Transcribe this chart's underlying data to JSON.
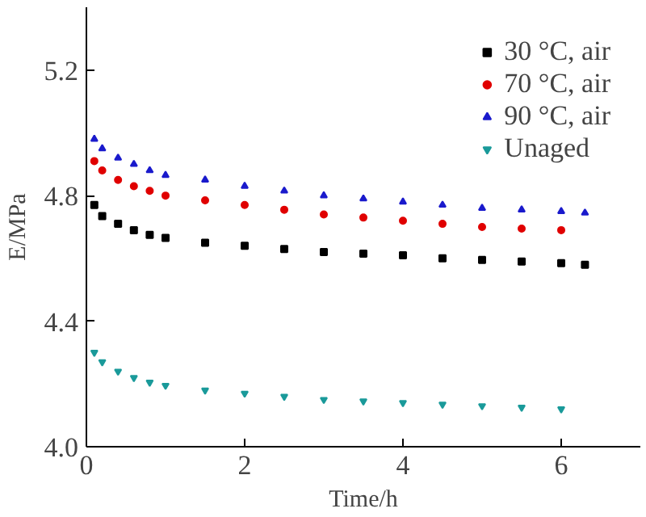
{
  "chart_data": {
    "type": "scatter",
    "xlabel": "Time/h",
    "ylabel": "E/MPa",
    "xlim": [
      0,
      7
    ],
    "ylim": [
      4.0,
      5.4
    ],
    "xticks": [
      0,
      2,
      4,
      6
    ],
    "yticks": [
      {
        "value": 4.0,
        "label": "4.0"
      },
      4.4,
      4.8,
      5.2
    ],
    "legend": "top right",
    "grid": false,
    "series": [
      {
        "name": "30 °C, air",
        "color": "#000000",
        "marker": "square",
        "x": [
          0.1,
          0.2,
          0.4,
          0.6,
          0.8,
          1,
          1.5,
          2,
          2.5,
          3,
          3.5,
          4,
          4.5,
          5,
          5.5,
          6,
          6.3
        ],
        "values": [
          4.77,
          4.735,
          4.71,
          4.69,
          4.675,
          4.665,
          4.65,
          4.64,
          4.63,
          4.62,
          4.615,
          4.61,
          4.6,
          4.595,
          4.59,
          4.585,
          4.58
        ]
      },
      {
        "name": "70 °C, air",
        "color": "#e00000",
        "marker": "circle",
        "x": [
          0.1,
          0.2,
          0.4,
          0.6,
          0.8,
          1,
          1.5,
          2,
          2.5,
          3,
          3.5,
          4,
          4.5,
          5,
          5.5,
          6
        ],
        "values": [
          4.91,
          4.88,
          4.85,
          4.83,
          4.815,
          4.8,
          4.785,
          4.77,
          4.755,
          4.74,
          4.73,
          4.72,
          4.71,
          4.7,
          4.695,
          4.69
        ]
      },
      {
        "name": "90 °C, air",
        "color": "#1a1acc",
        "marker": "triangle",
        "x": [
          0.1,
          0.2,
          0.4,
          0.6,
          0.8,
          1,
          1.5,
          2,
          2.5,
          3,
          3.5,
          4,
          4.5,
          5,
          5.5,
          6,
          6.3
        ],
        "values": [
          4.98,
          4.95,
          4.92,
          4.9,
          4.88,
          4.865,
          4.85,
          4.83,
          4.815,
          4.8,
          4.79,
          4.78,
          4.77,
          4.76,
          4.755,
          4.75,
          4.745
        ]
      },
      {
        "name": "Unaged",
        "color": "#1a9a9a",
        "marker": "triangle",
        "x": [
          0.1,
          0.2,
          0.4,
          0.6,
          0.8,
          1,
          1.5,
          2,
          2.5,
          3,
          3.5,
          4,
          4.5,
          5,
          5.5,
          6
        ],
        "values": [
          4.3,
          4.27,
          4.24,
          4.22,
          4.205,
          4.195,
          4.18,
          4.17,
          4.16,
          4.15,
          4.145,
          4.14,
          4.135,
          4.13,
          4.125,
          4.12
        ]
      }
    ]
  }
}
